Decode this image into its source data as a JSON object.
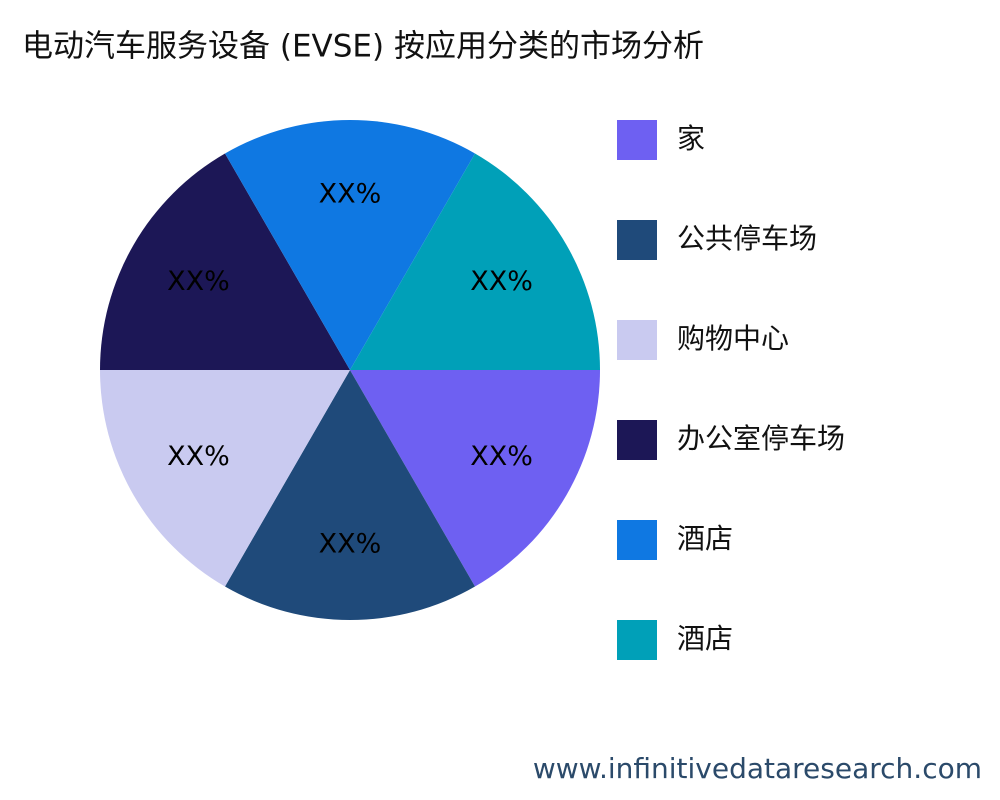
{
  "chart_data": {
    "type": "pie",
    "title": "电动汽车服务设备 (EVSE) 按应用分类的市场分析",
    "categories": [
      "家",
      "公共停车场",
      "购物中心",
      "办公室停车场",
      "酒店",
      "酒店"
    ],
    "values": [
      16.7,
      16.7,
      16.7,
      16.7,
      16.7,
      16.7
    ],
    "value_labels": [
      "XX%",
      "XX%",
      "XX%",
      "XX%",
      "XX%",
      "XX%"
    ],
    "colors": [
      "#6e60f2",
      "#1f4a7a",
      "#c9caf0",
      "#1c1756",
      "#0f78e2",
      "#00a0b8"
    ],
    "legend": "right",
    "source": "www.infinitivedataresearch.com"
  }
}
